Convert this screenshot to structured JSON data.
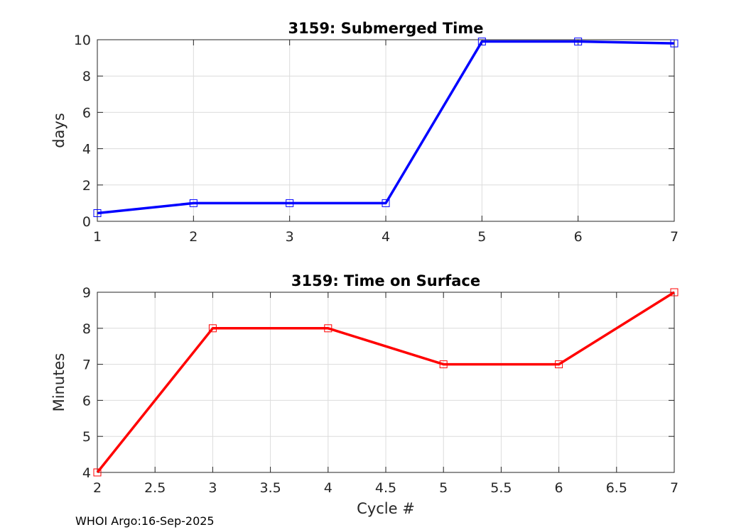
{
  "footer": {
    "credit": "WHOI Argo:16-Sep-2025"
  },
  "chart_data": [
    {
      "type": "line",
      "title": "3159: Submerged Time",
      "xlabel": "",
      "ylabel": "days",
      "xlim": [
        1,
        7
      ],
      "ylim": [
        0,
        10
      ],
      "xticks": [
        1,
        2,
        3,
        4,
        5,
        6,
        7
      ],
      "yticks": [
        0,
        2,
        4,
        6,
        8,
        10
      ],
      "grid": true,
      "marker": "square",
      "color": "#0000ff",
      "series": [
        {
          "x": [
            1,
            2,
            3,
            4,
            5,
            6,
            7
          ],
          "values": [
            0.45,
            1.0,
            1.0,
            1.0,
            9.9,
            9.9,
            9.8
          ]
        }
      ]
    },
    {
      "type": "line",
      "title": "3159: Time on Surface",
      "xlabel": "Cycle #",
      "ylabel": "Minutes",
      "xlim": [
        2,
        7
      ],
      "ylim": [
        4,
        9
      ],
      "xticks": [
        2,
        2.5,
        3,
        3.5,
        4,
        4.5,
        5,
        5.5,
        6,
        6.5,
        7
      ],
      "yticks": [
        4,
        5,
        6,
        7,
        8,
        9
      ],
      "grid": true,
      "marker": "square",
      "color": "#ff0000",
      "series": [
        {
          "x": [
            2,
            3,
            4,
            5,
            6,
            7
          ],
          "values": [
            4,
            8,
            8,
            7,
            7,
            9
          ]
        }
      ]
    }
  ]
}
